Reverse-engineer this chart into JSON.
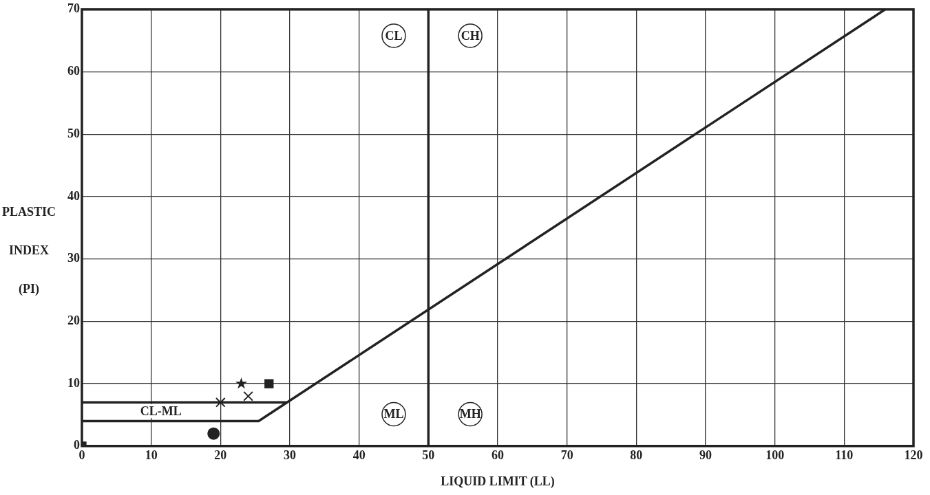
{
  "chart_data": {
    "type": "scatter",
    "xlabel": "LIQUID LIMIT (LL)",
    "ylabel": "PLASTIC INDEX (PI)",
    "xlim": [
      0,
      120
    ],
    "xticks": [
      0,
      10,
      20,
      30,
      40,
      50,
      60,
      70,
      80,
      90,
      100,
      110,
      120
    ],
    "ylim": [
      0,
      70
    ],
    "yticks": [
      0,
      10,
      20,
      30,
      40,
      50,
      60,
      70
    ],
    "grid": true,
    "legend": false,
    "series": [
      {
        "type": "line",
        "color": "#222222",
        "x": [
          0,
          25.5,
          115.9
        ],
        "values": [
          4,
          4,
          70
        ],
        "marker": "none"
      },
      {
        "type": "line",
        "color": "#222222",
        "x": [
          0,
          29.6
        ],
        "values": [
          7,
          7
        ],
        "marker": "none"
      },
      {
        "type": "scatter",
        "color": "#222222",
        "x": [
          0
        ],
        "values": [
          0
        ],
        "marker": "square"
      },
      {
        "type": "scatter",
        "color": "#222222",
        "x": [
          19
        ],
        "values": [
          2
        ],
        "marker": "circle"
      },
      {
        "type": "scatter",
        "color": "#222222",
        "x": [
          20
        ],
        "values": [
          7
        ],
        "marker": "cross"
      },
      {
        "type": "scatter",
        "color": "#222222",
        "x": [
          24
        ],
        "values": [
          8
        ],
        "marker": "cross"
      },
      {
        "type": "scatter",
        "color": "#222222",
        "x": [
          23
        ],
        "values": [
          10
        ],
        "marker": "star"
      },
      {
        "type": "scatter",
        "color": "#222222",
        "x": [
          27
        ],
        "values": [
          10
        ],
        "marker": "square"
      }
    ],
    "ref_lines": [
      {
        "axis": "x",
        "value": 50,
        "color": "#222222"
      }
    ],
    "annotations": [
      "CL",
      "CH",
      "ML",
      "MH",
      "CL-ML"
    ]
  }
}
